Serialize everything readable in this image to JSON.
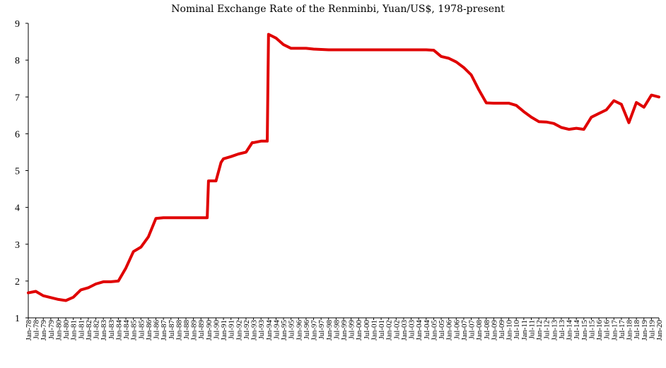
{
  "chart_data": {
    "type": "line",
    "title": "Nominal Exchange Rate of the  Renminbi, Yuan/US$, 1978-present",
    "xlabel": "",
    "ylabel": "",
    "ylim": [
      1,
      9
    ],
    "yticks": [
      "1",
      "2",
      "3",
      "4",
      "5",
      "6",
      "7",
      "8",
      "9"
    ],
    "xlim": [
      "Jan-78",
      "Jan-20"
    ],
    "grid": false,
    "legend": "none",
    "line_color": "#e00000",
    "xtick_labels": [
      "Jan-78",
      "Jul-78",
      "Jan-79",
      "Jul-79",
      "Jan-80",
      "Jul-80",
      "Jan-81",
      "Jul-81",
      "Jan-82",
      "Jul-82",
      "Jan-83",
      "Jul-83",
      "Jan-84",
      "Jul-84",
      "Jan-85",
      "Jul-85",
      "Jan-86",
      "Jul-86",
      "Jan-87",
      "Jul-87",
      "Jan-88",
      "Jul-88",
      "Jan-89",
      "Jul-89",
      "Jan-90",
      "Jul-90",
      "Jan-91",
      "Jul-91",
      "Jan-92",
      "Jul-92",
      "Jan-93",
      "Jul-93",
      "Jan-94",
      "Jul-94",
      "Jan-95",
      "Jul-95",
      "Jan-96",
      "Jul-96",
      "Jan-97",
      "Jul-97",
      "Jan-98",
      "Jul-98",
      "Jan-99",
      "Jul-99",
      "Jan-00",
      "Jul-00",
      "Jan-01",
      "Jul-01",
      "Jan-02",
      "Jul-02",
      "Jan-03",
      "Jul-03",
      "Jan-04",
      "Jul-04",
      "Jan-05",
      "Jul-05",
      "Jan-06",
      "Jul-06",
      "Jan-07",
      "Jul-07",
      "Jan-08",
      "Jul-08",
      "Jan-09",
      "Jul-09",
      "Jan-10",
      "Jul-10",
      "Jan-11",
      "Jul-11",
      "Jan-12",
      "Jul-12",
      "Jan-13",
      "Jul-13",
      "Jan-14",
      "Jul-14",
      "Jan-15",
      "Jul-15",
      "Jan-16",
      "Jul-16",
      "Jan-17",
      "Jul-17",
      "Jan-18",
      "Jul-18",
      "Jan-19",
      "Jul-19",
      "Jan-20"
    ],
    "series": [
      {
        "x": [
          "Jan-78",
          "Jul-78",
          "Jan-79",
          "Jul-79",
          "Jan-80",
          "Jul-80",
          "Jan-81",
          "Jul-81",
          "Jan-82",
          "Jul-82",
          "Jan-83",
          "Jul-83",
          "Jan-84",
          "Jul-84",
          "Jan-85",
          "Jul-85",
          "Jan-86",
          "Jul-86",
          "Jan-87",
          "Jul-87",
          "Jan-88",
          "Jul-88",
          "Jan-89",
          "Dec-89",
          "Jan-90",
          "Jul-90",
          "Nov-90",
          "Jan-91",
          "Jul-91",
          "Jan-92",
          "Jul-92",
          "Dec-92",
          "Jan-93",
          "Jul-93",
          "Dec-93",
          "Jan-94",
          "Jul-94",
          "Jan-95",
          "Jul-95",
          "Jan-96",
          "Jul-96",
          "Jan-97",
          "Jul-97",
          "Jan-98",
          "Jul-98",
          "Jan-99",
          "Jul-99",
          "Jan-00",
          "Jul-00",
          "Jan-01",
          "Jul-01",
          "Jan-02",
          "Jul-02",
          "Jan-03",
          "Jul-03",
          "Jan-04",
          "Jul-04",
          "Jan-05",
          "Jul-05",
          "Jan-06",
          "Jul-06",
          "Jan-07",
          "Jul-07",
          "Jan-08",
          "Jul-08",
          "Jan-09",
          "Jul-09",
          "Jan-10",
          "Jul-10",
          "Jan-11",
          "Jul-11",
          "Jan-12",
          "Jul-12",
          "Jan-13",
          "Jul-13",
          "Jan-14",
          "Jul-14",
          "Jan-15",
          "Jul-15",
          "Jan-16",
          "Jul-16",
          "Jan-17",
          "Jul-17",
          "Jan-18",
          "Jul-18",
          "Jan-19",
          "Jul-19",
          "Jan-20"
        ],
        "values": [
          1.68,
          1.72,
          1.6,
          1.55,
          1.5,
          1.47,
          1.56,
          1.76,
          1.82,
          1.92,
          1.98,
          1.98,
          2.0,
          2.35,
          2.8,
          2.92,
          3.2,
          3.7,
          3.72,
          3.72,
          3.72,
          3.72,
          3.72,
          3.72,
          4.72,
          4.72,
          5.22,
          5.32,
          5.38,
          5.45,
          5.5,
          5.76,
          5.76,
          5.8,
          5.8,
          8.7,
          8.6,
          8.42,
          8.32,
          8.32,
          8.32,
          8.3,
          8.29,
          8.28,
          8.28,
          8.28,
          8.28,
          8.28,
          8.28,
          8.28,
          8.28,
          8.28,
          8.28,
          8.28,
          8.28,
          8.28,
          8.28,
          8.27,
          8.1,
          8.05,
          7.95,
          7.8,
          7.6,
          7.2,
          6.84,
          6.83,
          6.83,
          6.83,
          6.77,
          6.6,
          6.45,
          6.33,
          6.32,
          6.28,
          6.17,
          6.12,
          6.15,
          6.12,
          6.45,
          6.55,
          6.65,
          6.9,
          6.8,
          6.3,
          6.85,
          6.72,
          7.05,
          7.0
        ]
      }
    ]
  }
}
